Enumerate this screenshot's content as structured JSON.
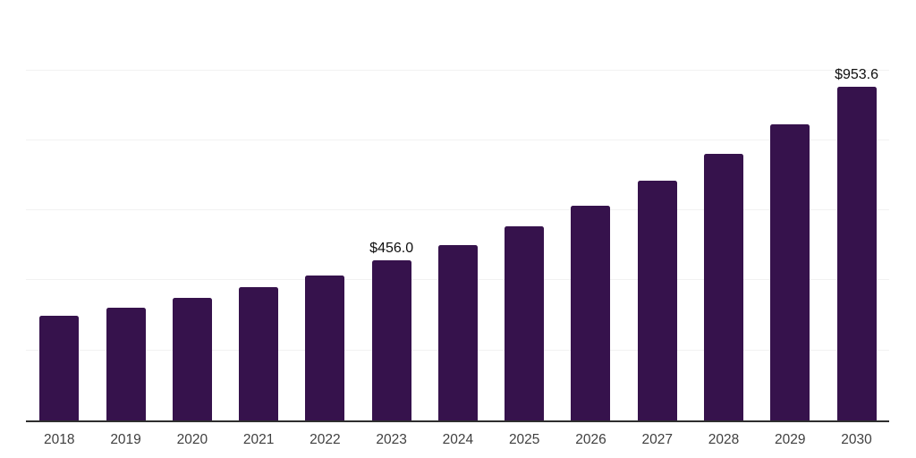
{
  "chart_data": {
    "type": "bar",
    "title": "",
    "xlabel": "",
    "ylabel": "",
    "categories": [
      "2018",
      "2019",
      "2020",
      "2021",
      "2022",
      "2023",
      "2024",
      "2025",
      "2026",
      "2027",
      "2028",
      "2029",
      "2030"
    ],
    "values": [
      299,
      322,
      350,
      381,
      414,
      456.0,
      501,
      554,
      612,
      685,
      761,
      845,
      953.6
    ],
    "data_labels": [
      "",
      "",
      "",
      "",
      "",
      "$456.0",
      "",
      "",
      "",
      "",
      "",
      "",
      "$953.6"
    ],
    "ylim": [
      0,
      1200
    ],
    "gridline_step": 200,
    "grid": true,
    "legend": false,
    "y_axis_labels_visible": false,
    "bar_color": "#36124c",
    "axis_color": "#2e2e2e",
    "gridline_color": "#f2f2f2",
    "tick_label_color": "#404040",
    "data_label_color": "#0f0f0f"
  }
}
